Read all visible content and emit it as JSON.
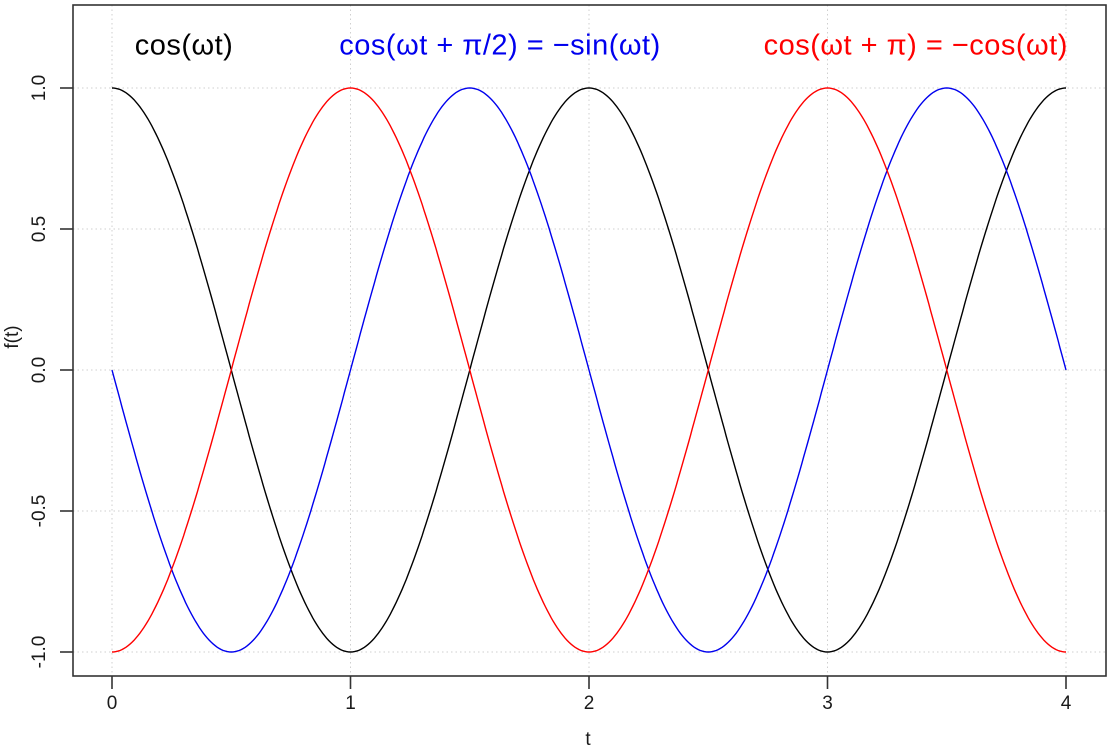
{
  "chart_data": {
    "type": "line",
    "title": "",
    "xlabel": "t",
    "ylabel": "f(t)",
    "xlim": [
      0,
      4
    ],
    "ylim": [
      -1.09,
      1.29
    ],
    "x_ticks": [
      0,
      1,
      2,
      3,
      4
    ],
    "x_tick_labels": [
      "0",
      "1",
      "2",
      "3",
      "4"
    ],
    "y_ticks": [
      1.0,
      0.5,
      0.0,
      -0.5,
      -1.0
    ],
    "y_tick_labels": [
      "1.0",
      "0.5",
      "0.0",
      "-0.5",
      "-1.0"
    ],
    "grid": "dotted gridlines at every axis tick",
    "grid_color": "#cfcfcf",
    "axis_color": "#333333",
    "background": "#ffffff",
    "series": [
      {
        "name": "cos(ωt)",
        "formula": "f(t) = cos(πt)",
        "phase_over_pi": 0,
        "color": "#000000"
      },
      {
        "name": "cos(ωt + π/2) = −sin(ωt)",
        "formula": "f(t) = cos(πt + π/2)",
        "phase_over_pi": 0.5,
        "color": "#0000ee"
      },
      {
        "name": "cos(ωt + π) = −cos(ωt)",
        "formula": "f(t) = cos(πt + π)",
        "phase_over_pi": 1,
        "color": "#ff0000"
      }
    ],
    "annotations": [
      {
        "text": "cos(ωt)",
        "x": 0.302,
        "y": 1.15,
        "color": "#000000"
      },
      {
        "text": "cos(ωt + π/2) = −sin(ωt)",
        "x": 1.627,
        "y": 1.15,
        "color": "#0000ee"
      },
      {
        "text": "cos(ωt + π) = −cos(ωt)",
        "x": 3.37,
        "y": 1.15,
        "color": "#ff0000"
      }
    ]
  }
}
